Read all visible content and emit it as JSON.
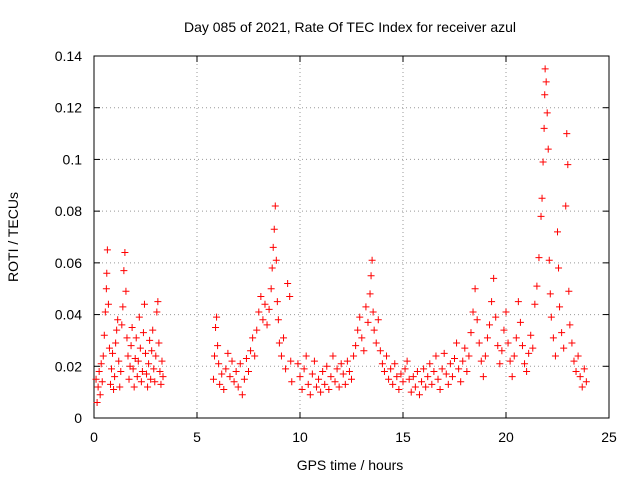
{
  "chart_data": {
    "type": "scatter",
    "title": "Day 085 of 2021, Rate Of TEC Index for receiver azul",
    "xlabel": "GPS time / hours",
    "ylabel": "ROTI / TECUs",
    "xlim": [
      0,
      25
    ],
    "ylim": [
      0,
      0.14
    ],
    "xticks": [
      0,
      5,
      10,
      15,
      20,
      25
    ],
    "yticks": [
      0,
      0.02,
      0.04,
      0.06,
      0.08,
      0.1,
      0.12,
      0.14
    ],
    "xtick_labels": [
      "0",
      "5",
      "10",
      "15",
      "20",
      "25"
    ],
    "ytick_labels": [
      "0",
      "0.02",
      "0.04",
      "0.06",
      "0.08",
      "0.1",
      "0.12",
      "0.14"
    ],
    "grid": true,
    "legend": "none",
    "marker": "+",
    "color": "#ff0000",
    "points": [
      [
        0.1,
        0.015
      ],
      [
        0.15,
        0.006
      ],
      [
        0.2,
        0.012
      ],
      [
        0.25,
        0.018
      ],
      [
        0.3,
        0.009
      ],
      [
        0.35,
        0.021
      ],
      [
        0.4,
        0.014
      ],
      [
        0.45,
        0.024
      ],
      [
        0.5,
        0.032
      ],
      [
        0.55,
        0.041
      ],
      [
        0.6,
        0.05
      ],
      [
        0.62,
        0.056
      ],
      [
        0.65,
        0.065
      ],
      [
        0.7,
        0.044
      ],
      [
        0.75,
        0.027
      ],
      [
        0.8,
        0.013
      ],
      [
        0.85,
        0.019
      ],
      [
        0.9,
        0.025
      ],
      [
        0.95,
        0.011
      ],
      [
        1.0,
        0.016
      ],
      [
        1.05,
        0.029
      ],
      [
        1.1,
        0.034
      ],
      [
        1.15,
        0.038
      ],
      [
        1.2,
        0.022
      ],
      [
        1.25,
        0.012
      ],
      [
        1.3,
        0.018
      ],
      [
        1.35,
        0.036
      ],
      [
        1.4,
        0.043
      ],
      [
        1.45,
        0.057
      ],
      [
        1.5,
        0.064
      ],
      [
        1.55,
        0.049
      ],
      [
        1.6,
        0.031
      ],
      [
        1.65,
        0.024
      ],
      [
        1.7,
        0.015
      ],
      [
        1.75,
        0.02
      ],
      [
        1.8,
        0.028
      ],
      [
        1.85,
        0.035
      ],
      [
        1.9,
        0.019
      ],
      [
        1.95,
        0.012
      ],
      [
        2.0,
        0.023
      ],
      [
        2.05,
        0.031
      ],
      [
        2.1,
        0.016
      ],
      [
        2.15,
        0.022
      ],
      [
        2.2,
        0.039
      ],
      [
        2.25,
        0.027
      ],
      [
        2.3,
        0.014
      ],
      [
        2.35,
        0.018
      ],
      [
        2.4,
        0.033
      ],
      [
        2.45,
        0.044
      ],
      [
        2.5,
        0.025
      ],
      [
        2.55,
        0.017
      ],
      [
        2.6,
        0.012
      ],
      [
        2.65,
        0.021
      ],
      [
        2.7,
        0.03
      ],
      [
        2.75,
        0.015
      ],
      [
        2.8,
        0.026
      ],
      [
        2.85,
        0.034
      ],
      [
        2.9,
        0.019
      ],
      [
        2.95,
        0.014
      ],
      [
        3.0,
        0.024
      ],
      [
        3.05,
        0.041
      ],
      [
        3.1,
        0.045
      ],
      [
        3.15,
        0.029
      ],
      [
        3.2,
        0.018
      ],
      [
        3.25,
        0.013
      ],
      [
        3.3,
        0.022
      ],
      [
        3.35,
        0.016
      ],
      [
        5.8,
        0.015
      ],
      [
        5.85,
        0.024
      ],
      [
        5.9,
        0.035
      ],
      [
        5.95,
        0.039
      ],
      [
        6.0,
        0.028
      ],
      [
        6.05,
        0.021
      ],
      [
        6.1,
        0.013
      ],
      [
        6.2,
        0.017
      ],
      [
        6.3,
        0.011
      ],
      [
        6.4,
        0.019
      ],
      [
        6.5,
        0.025
      ],
      [
        6.6,
        0.016
      ],
      [
        6.7,
        0.022
      ],
      [
        6.8,
        0.014
      ],
      [
        6.9,
        0.018
      ],
      [
        7.0,
        0.012
      ],
      [
        7.1,
        0.021
      ],
      [
        7.2,
        0.009
      ],
      [
        7.3,
        0.015
      ],
      [
        7.4,
        0.023
      ],
      [
        7.5,
        0.018
      ],
      [
        7.6,
        0.026
      ],
      [
        7.7,
        0.031
      ],
      [
        7.8,
        0.024
      ],
      [
        7.9,
        0.034
      ],
      [
        8.0,
        0.041
      ],
      [
        8.1,
        0.047
      ],
      [
        8.2,
        0.038
      ],
      [
        8.3,
        0.044
      ],
      [
        8.4,
        0.036
      ],
      [
        8.5,
        0.042
      ],
      [
        8.6,
        0.05
      ],
      [
        8.65,
        0.058
      ],
      [
        8.7,
        0.066
      ],
      [
        8.75,
        0.073
      ],
      [
        8.8,
        0.082
      ],
      [
        8.85,
        0.061
      ],
      [
        8.9,
        0.045
      ],
      [
        8.95,
        0.038
      ],
      [
        9.0,
        0.029
      ],
      [
        9.1,
        0.024
      ],
      [
        9.2,
        0.031
      ],
      [
        9.3,
        0.019
      ],
      [
        9.4,
        0.052
      ],
      [
        9.5,
        0.047
      ],
      [
        9.55,
        0.022
      ],
      [
        9.6,
        0.014
      ],
      [
        9.9,
        0.021
      ],
      [
        10.0,
        0.016
      ],
      [
        10.1,
        0.011
      ],
      [
        10.2,
        0.019
      ],
      [
        10.3,
        0.024
      ],
      [
        10.4,
        0.013
      ],
      [
        10.5,
        0.009
      ],
      [
        10.6,
        0.017
      ],
      [
        10.7,
        0.022
      ],
      [
        10.8,
        0.012
      ],
      [
        10.9,
        0.015
      ],
      [
        11.0,
        0.01
      ],
      [
        11.1,
        0.018
      ],
      [
        11.2,
        0.013
      ],
      [
        11.3,
        0.02
      ],
      [
        11.4,
        0.011
      ],
      [
        11.5,
        0.016
      ],
      [
        11.6,
        0.024
      ],
      [
        11.7,
        0.014
      ],
      [
        11.8,
        0.019
      ],
      [
        11.9,
        0.012
      ],
      [
        12.0,
        0.021
      ],
      [
        12.1,
        0.017
      ],
      [
        12.2,
        0.013
      ],
      [
        12.3,
        0.022
      ],
      [
        12.4,
        0.018
      ],
      [
        12.5,
        0.015
      ],
      [
        12.6,
        0.024
      ],
      [
        12.7,
        0.028
      ],
      [
        12.8,
        0.034
      ],
      [
        12.9,
        0.039
      ],
      [
        13.0,
        0.031
      ],
      [
        13.1,
        0.026
      ],
      [
        13.2,
        0.043
      ],
      [
        13.3,
        0.037
      ],
      [
        13.4,
        0.048
      ],
      [
        13.45,
        0.055
      ],
      [
        13.5,
        0.061
      ],
      [
        13.55,
        0.041
      ],
      [
        13.6,
        0.034
      ],
      [
        13.7,
        0.029
      ],
      [
        13.8,
        0.038
      ],
      [
        13.9,
        0.026
      ],
      [
        14.0,
        0.021
      ],
      [
        14.1,
        0.018
      ],
      [
        14.2,
        0.024
      ],
      [
        14.3,
        0.015
      ],
      [
        14.4,
        0.019
      ],
      [
        14.5,
        0.013
      ],
      [
        14.6,
        0.021
      ],
      [
        14.7,
        0.016
      ],
      [
        14.8,
        0.011
      ],
      [
        14.9,
        0.017
      ],
      [
        15.0,
        0.014
      ],
      [
        15.1,
        0.019
      ],
      [
        15.2,
        0.022
      ],
      [
        15.3,
        0.015
      ],
      [
        15.4,
        0.01
      ],
      [
        15.5,
        0.016
      ],
      [
        15.6,
        0.012
      ],
      [
        15.7,
        0.018
      ],
      [
        15.8,
        0.009
      ],
      [
        15.9,
        0.014
      ],
      [
        16.0,
        0.019
      ],
      [
        16.1,
        0.012
      ],
      [
        16.2,
        0.016
      ],
      [
        16.3,
        0.021
      ],
      [
        16.4,
        0.013
      ],
      [
        16.5,
        0.018
      ],
      [
        16.6,
        0.024
      ],
      [
        16.7,
        0.015
      ],
      [
        16.8,
        0.011
      ],
      [
        16.9,
        0.019
      ],
      [
        17.0,
        0.025
      ],
      [
        17.1,
        0.017
      ],
      [
        17.2,
        0.013
      ],
      [
        17.3,
        0.021
      ],
      [
        17.4,
        0.016
      ],
      [
        17.5,
        0.023
      ],
      [
        17.6,
        0.029
      ],
      [
        17.7,
        0.019
      ],
      [
        17.8,
        0.014
      ],
      [
        17.9,
        0.022
      ],
      [
        18.0,
        0.027
      ],
      [
        18.1,
        0.018
      ],
      [
        18.2,
        0.024
      ],
      [
        18.3,
        0.033
      ],
      [
        18.4,
        0.041
      ],
      [
        18.5,
        0.05
      ],
      [
        18.6,
        0.038
      ],
      [
        18.7,
        0.029
      ],
      [
        18.8,
        0.022
      ],
      [
        18.9,
        0.016
      ],
      [
        19.0,
        0.024
      ],
      [
        19.1,
        0.031
      ],
      [
        19.2,
        0.036
      ],
      [
        19.3,
        0.045
      ],
      [
        19.4,
        0.054
      ],
      [
        19.5,
        0.039
      ],
      [
        19.6,
        0.028
      ],
      [
        19.7,
        0.021
      ],
      [
        19.8,
        0.026
      ],
      [
        19.9,
        0.034
      ],
      [
        20.0,
        0.041
      ],
      [
        20.1,
        0.029
      ],
      [
        20.2,
        0.022
      ],
      [
        20.3,
        0.016
      ],
      [
        20.4,
        0.024
      ],
      [
        20.5,
        0.031
      ],
      [
        20.6,
        0.045
      ],
      [
        20.7,
        0.037
      ],
      [
        20.8,
        0.028
      ],
      [
        20.9,
        0.021
      ],
      [
        21.0,
        0.018
      ],
      [
        21.1,
        0.025
      ],
      [
        21.2,
        0.032
      ],
      [
        21.3,
        0.027
      ],
      [
        21.4,
        0.044
      ],
      [
        21.5,
        0.051
      ],
      [
        21.6,
        0.062
      ],
      [
        21.7,
        0.078
      ],
      [
        21.75,
        0.085
      ],
      [
        21.8,
        0.099
      ],
      [
        21.85,
        0.112
      ],
      [
        21.88,
        0.125
      ],
      [
        21.9,
        0.135
      ],
      [
        21.95,
        0.13
      ],
      [
        22.0,
        0.118
      ],
      [
        22.05,
        0.104
      ],
      [
        22.1,
        0.061
      ],
      [
        22.15,
        0.048
      ],
      [
        22.2,
        0.039
      ],
      [
        22.3,
        0.031
      ],
      [
        22.4,
        0.024
      ],
      [
        22.5,
        0.072
      ],
      [
        22.55,
        0.058
      ],
      [
        22.6,
        0.043
      ],
      [
        22.7,
        0.033
      ],
      [
        22.8,
        0.027
      ],
      [
        22.9,
        0.082
      ],
      [
        22.95,
        0.11
      ],
      [
        23.0,
        0.098
      ],
      [
        23.05,
        0.049
      ],
      [
        23.1,
        0.036
      ],
      [
        23.2,
        0.029
      ],
      [
        23.3,
        0.022
      ],
      [
        23.4,
        0.018
      ],
      [
        23.5,
        0.024
      ],
      [
        23.6,
        0.016
      ],
      [
        23.7,
        0.012
      ],
      [
        23.8,
        0.019
      ],
      [
        23.9,
        0.014
      ]
    ]
  }
}
